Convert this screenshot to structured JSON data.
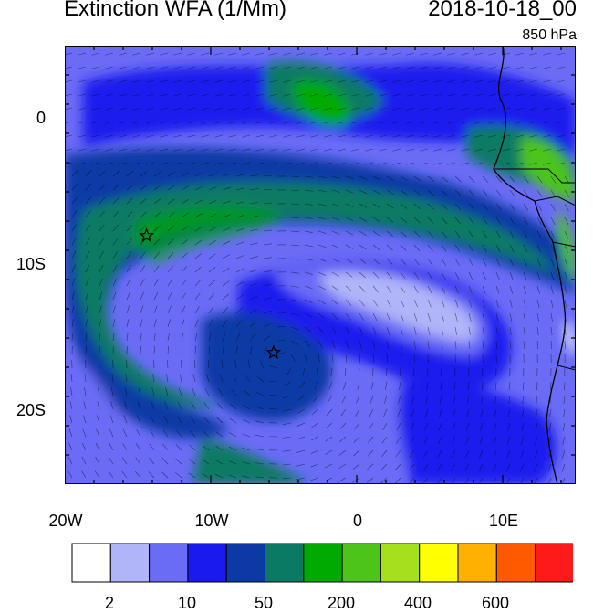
{
  "title": "Extinction WFA (1/Mm)",
  "date": "2018-10-18_00",
  "level": "850 hPa",
  "lat_ticks": [
    {
      "label": "0",
      "value": 0
    },
    {
      "label": "10S",
      "value": -10
    },
    {
      "label": "20S",
      "value": -20
    }
  ],
  "lon_ticks": [
    {
      "label": "20W",
      "value": -20
    },
    {
      "label": "10W",
      "value": -10
    },
    {
      "label": "0",
      "value": 0
    },
    {
      "label": "10E",
      "value": 10
    }
  ],
  "extent": {
    "lon_min": -20,
    "lon_max": 15,
    "lat_min": -25,
    "lat_max": 5
  },
  "colorbar": {
    "colors": [
      "#ffffff",
      "#b0b4f8",
      "#6a6cf6",
      "#1a1aee",
      "#0b3aa6",
      "#0a7a64",
      "#00aa00",
      "#4cc41a",
      "#a4e01c",
      "#ffff00",
      "#ffb000",
      "#ff5a00",
      "#ff1a1a"
    ],
    "labels": [
      {
        "text": "2",
        "after_bin": 2
      },
      {
        "text": "10",
        "after_bin": 3
      },
      {
        "text": "50",
        "after_bin": 5
      },
      {
        "text": "200",
        "after_bin": 7
      },
      {
        "text": "400",
        "after_bin": 9
      },
      {
        "text": "600",
        "after_bin": 11
      }
    ]
  },
  "markers": [
    {
      "name": "star",
      "lon": -14.4,
      "lat": -8.0
    },
    {
      "name": "star",
      "lon": -5.7,
      "lat": -16.0
    }
  ]
}
